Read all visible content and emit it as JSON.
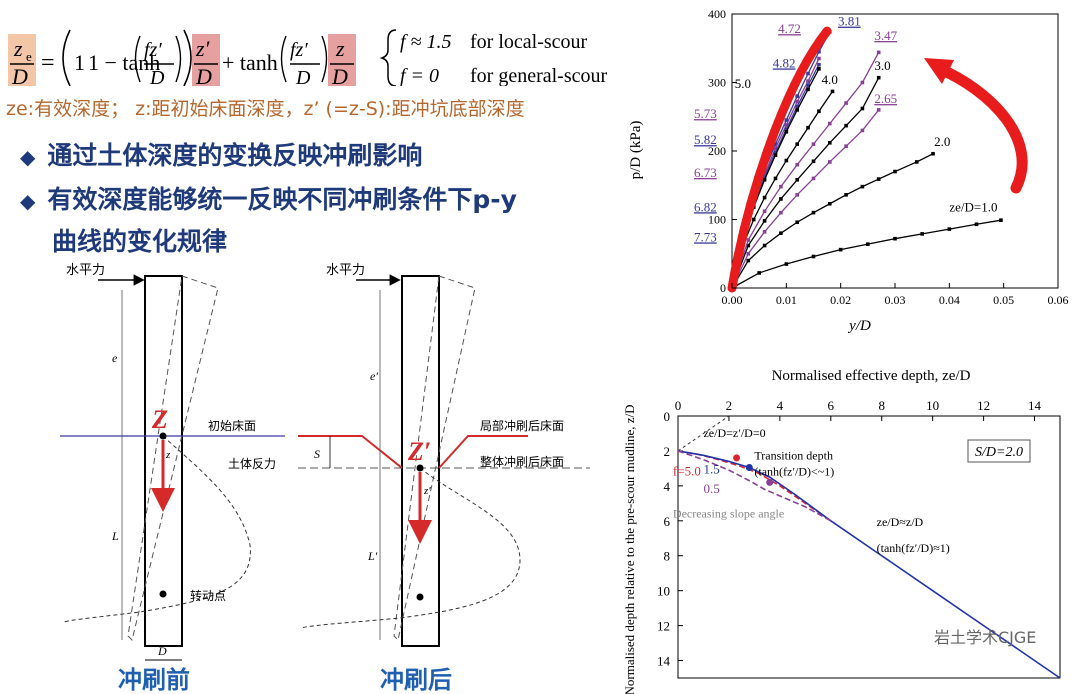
{
  "equation": {
    "lhs_num": "z",
    "lhs_sub": "e",
    "lhs_den": "D",
    "one_minus_tanh": "1 − tanh",
    "fz_prime": "fz′",
    "d": "D",
    "z_prime": "z′",
    "plus_tanh": "+ tanh",
    "z": "z",
    "case1_f": "f ≈ 1.5",
    "case1_text": "for local-scour",
    "case2_f": "f = 0",
    "case2_text": "for general-scour"
  },
  "definitions": "ze:有效深度；  z:距初始床面深度，z’ (=z-S):距冲坑底部深度",
  "bullets": [
    "通过土体深度的变换反映冲刷影响",
    "有效深度能够统一反映不同冲刷条件下p-y",
    "曲线的变化规律"
  ],
  "schematic": {
    "horizontal_force": "水平力",
    "initial_bed": "初始床面",
    "soil_reaction": "土体反力",
    "rotation_point": "转动点",
    "local_scour_bed": "局部冲刷后床面",
    "general_scour_bed": "整体冲刷后床面",
    "label_e": "e",
    "label_L": "L",
    "label_e_prime": "e′",
    "label_L_prime": "L′",
    "label_Z": "Z",
    "label_Z_prime": "Z′",
    "label_z": "z",
    "label_z_prime": "z′",
    "label_S": "S",
    "label_D": "D",
    "before": "冲刷前",
    "after": "冲刷后"
  },
  "chart_data": [
    {
      "type": "line",
      "title": "",
      "xlabel": "y/D",
      "ylabel": "p/D (kPa)",
      "xlim": [
        0,
        0.06
      ],
      "ylim": [
        0,
        400
      ],
      "xticks": [
        "0.00",
        "0.01",
        "0.02",
        "0.03",
        "0.04",
        "0.05",
        "0.06"
      ],
      "yticks": [
        "0",
        "100",
        "200",
        "300",
        "400"
      ],
      "series": [
        {
          "name": "1.0",
          "color": "#000000",
          "x": [
            0,
            0.005,
            0.01,
            0.015,
            0.02,
            0.025,
            0.03,
            0.035,
            0.04,
            0.045,
            0.0495
          ],
          "y": [
            0,
            22,
            35,
            46,
            56,
            64,
            72,
            79,
            86,
            93,
            99
          ]
        },
        {
          "name": "2.0",
          "color": "#000000",
          "x": [
            0,
            0.003,
            0.006,
            0.009,
            0.012,
            0.015,
            0.018,
            0.021,
            0.024,
            0.027,
            0.03,
            0.034,
            0.037
          ],
          "y": [
            0,
            40,
            62,
            80,
            96,
            110,
            123,
            136,
            148,
            159,
            170,
            184,
            196
          ]
        },
        {
          "name": "2.65",
          "color": "#8a3f97",
          "x": [
            0,
            0.003,
            0.006,
            0.009,
            0.012,
            0.015,
            0.018,
            0.021,
            0.024,
            0.027
          ],
          "y": [
            0,
            50,
            82,
            110,
            136,
            160,
            184,
            207,
            230,
            260
          ]
        },
        {
          "name": "3.0",
          "color": "#000000",
          "x": [
            0,
            0.003,
            0.006,
            0.009,
            0.012,
            0.015,
            0.018,
            0.021,
            0.024,
            0.027
          ],
          "y": [
            0,
            62,
            98,
            130,
            158,
            185,
            212,
            237,
            262,
            307
          ]
        },
        {
          "name": "3.47",
          "color": "#8a3f97",
          "x": [
            0,
            0.003,
            0.006,
            0.009,
            0.012,
            0.015,
            0.018,
            0.021,
            0.024,
            0.027
          ],
          "y": [
            0,
            70,
            112,
            148,
            180,
            210,
            240,
            270,
            300,
            344
          ]
        },
        {
          "name": "4.0",
          "color": "#000000",
          "x": [
            0,
            0.002,
            0.004,
            0.006,
            0.008,
            0.01,
            0.012,
            0.014,
            0.016,
            0.0185
          ],
          "y": [
            0,
            62,
            100,
            132,
            160,
            186,
            210,
            234,
            258,
            287
          ]
        },
        {
          "name": "3.81",
          "color": "#3a3a9a",
          "x": [
            0,
            0.002,
            0.004,
            0.006,
            0.008,
            0.01,
            0.012,
            0.014,
            0.016,
            0.018
          ],
          "y": [
            0,
            80,
            130,
            172,
            210,
            245,
            280,
            313,
            345,
            374
          ]
        },
        {
          "name": "4.72",
          "color": "#8a3f97",
          "x": [
            0,
            0.002,
            0.004,
            0.006,
            0.008,
            0.01,
            0.012,
            0.014,
            0.016
          ],
          "y": [
            0,
            78,
            126,
            166,
            204,
            238,
            272,
            302,
            335
          ]
        },
        {
          "name": "4.82",
          "color": "#3a3a9a",
          "x": [
            0,
            0.002,
            0.004,
            0.006,
            0.008,
            0.01,
            0.012,
            0.014,
            0.016
          ],
          "y": [
            0,
            75,
            122,
            162,
            198,
            232,
            265,
            296,
            326
          ]
        },
        {
          "name": "5.0",
          "color": "#000000",
          "x": [
            0,
            0.002,
            0.004,
            0.006,
            0.008,
            0.01,
            0.012,
            0.014,
            0.016
          ],
          "y": [
            0,
            72,
            118,
            158,
            194,
            228,
            260,
            290,
            320
          ]
        }
      ],
      "annotations": [
        "3.81",
        "4.72",
        "3.47",
        "4.82",
        "3.0",
        "5.0",
        "4.0",
        "2.65",
        "5.73",
        "5.82",
        "6.73",
        "6.82",
        "7.73",
        "2.0",
        "ze/D=1.0"
      ]
    },
    {
      "type": "line",
      "title": "Normalised effective depth, ze/D",
      "xlabel": "Normalised effective depth, ze/D",
      "ylabel": "Normalised depth relative to the pre-scour mudline, z/D",
      "xlim": [
        0,
        15
      ],
      "ylim": [
        0,
        15
      ],
      "xticks": [
        "0",
        "2",
        "4",
        "6",
        "8",
        "10",
        "12",
        "14"
      ],
      "yticks": [
        "0",
        "2",
        "4",
        "6",
        "8",
        "10",
        "12",
        "14"
      ],
      "legend_text": "S/D=2.0",
      "series": [
        {
          "name": "f=5.0",
          "color": "#d9262e",
          "x": [
            0,
            0.8,
            1.6,
            2.4,
            3.2,
            4.0,
            5.0,
            6.0
          ],
          "y": [
            2,
            2.2,
            2.5,
            2.85,
            3.3,
            4.0,
            5.0,
            6.0
          ]
        },
        {
          "name": "1.5",
          "color": "#2233aa",
          "x": [
            0,
            1.0,
            2.0,
            2.8,
            3.6,
            4.6,
            6.0,
            8.0,
            10.0,
            12.0,
            15.0
          ],
          "y": [
            2,
            2.25,
            2.6,
            2.95,
            3.5,
            4.5,
            6.0,
            8.0,
            10.0,
            12.0,
            15.0
          ]
        },
        {
          "name": "0.5",
          "color": "#8a3f97",
          "x": [
            0,
            1.0,
            2.0,
            2.8,
            3.4,
            4.2,
            5.0,
            6.0
          ],
          "y": [
            2,
            2.5,
            3.1,
            3.7,
            4.2,
            4.7,
            5.2,
            6.0
          ]
        }
      ],
      "annotations": [
        "ze/D=z′/D=0",
        "Transition depth",
        "(tanh(fz′/D)<~1)",
        "f=5.0",
        "1.5",
        "0.5",
        "Decreasing slope angle",
        "ze/D≈z/D",
        "(tanh(fz′/D)≈1)"
      ]
    }
  ],
  "watermark": "岩土学术CJGE"
}
